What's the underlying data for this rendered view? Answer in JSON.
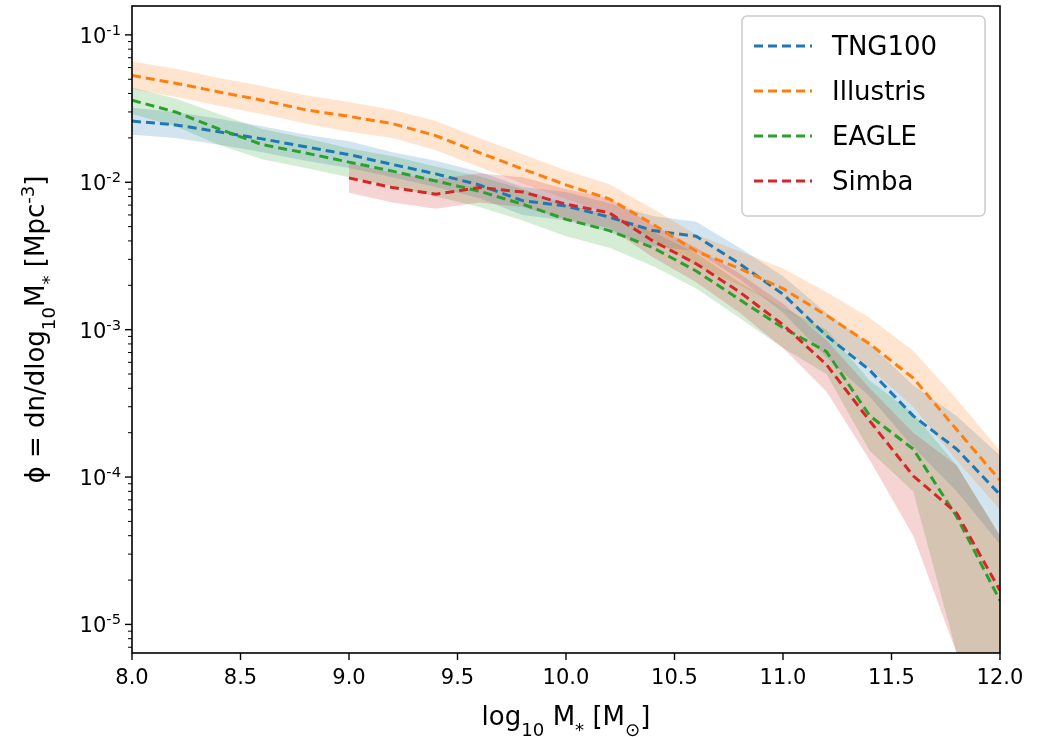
{
  "chart_data": {
    "type": "line",
    "xlabel": "log$_{10}$ M$_{*}$  [M$_{⊙}$]",
    "ylabel": "ϕ = dn/dlog$_{10}$M$_{*}$ [Mpc$^{-3}$]",
    "x": [
      8.0,
      8.2,
      8.4,
      8.6,
      8.8,
      9.0,
      9.2,
      9.4,
      9.6,
      9.8,
      10.0,
      10.2,
      10.4,
      10.6,
      10.8,
      11.0,
      11.2,
      11.4,
      11.6,
      11.8,
      12.0
    ],
    "series": [
      {
        "name": "TNG100",
        "color": "#1f77b4",
        "values": [
          0.026,
          0.0245,
          0.022,
          0.0197,
          0.0174,
          0.0154,
          0.0132,
          0.0114,
          0.0096,
          0.0075,
          0.0069,
          0.0058,
          0.0047,
          0.0043,
          0.0028,
          0.00174,
          0.00091,
          0.00053,
          0.00026,
          0.000155,
          7.6e-05
        ],
        "upper": [
          0.032,
          0.03,
          0.027,
          0.024,
          0.021,
          0.019,
          0.016,
          0.014,
          0.0118,
          0.0093,
          0.0086,
          0.0072,
          0.0059,
          0.0054,
          0.0036,
          0.0023,
          0.0013,
          0.0008,
          0.00042,
          0.00026,
          0.00014
        ],
        "lower": [
          0.021,
          0.02,
          0.018,
          0.016,
          0.014,
          0.0125,
          0.0108,
          0.0093,
          0.0078,
          0.006,
          0.0055,
          0.0046,
          0.0037,
          0.0034,
          0.0022,
          0.0013,
          0.00065,
          0.00035,
          0.00016,
          8e-05,
          3.5e-05
        ]
      },
      {
        "name": "Illustris",
        "color": "#ff7f0e",
        "values": [
          0.053,
          0.047,
          0.041,
          0.036,
          0.031,
          0.028,
          0.025,
          0.0207,
          0.0159,
          0.0123,
          0.0096,
          0.0077,
          0.0052,
          0.0034,
          0.0026,
          0.0019,
          0.00125,
          0.0008,
          0.00047,
          0.00021,
          9.5e-05
        ],
        "upper": [
          0.066,
          0.059,
          0.051,
          0.045,
          0.039,
          0.035,
          0.031,
          0.026,
          0.02,
          0.0155,
          0.012,
          0.0097,
          0.0066,
          0.0044,
          0.0034,
          0.0026,
          0.0018,
          0.0012,
          0.00072,
          0.00034,
          0.00015
        ],
        "lower": [
          0.043,
          0.038,
          0.033,
          0.029,
          0.025,
          0.022,
          0.02,
          0.0165,
          0.0127,
          0.0098,
          0.0077,
          0.0061,
          0.0041,
          0.0027,
          0.002,
          0.0014,
          0.0009,
          0.00055,
          0.0003,
          0.00013,
          6e-05
        ]
      },
      {
        "name": "EAGLE",
        "color": "#2ca02c",
        "values": [
          0.036,
          0.03,
          0.023,
          0.018,
          0.0158,
          0.0137,
          0.0119,
          0.0102,
          0.0087,
          0.0071,
          0.0056,
          0.0047,
          0.0036,
          0.0025,
          0.0016,
          0.00103,
          0.00071,
          0.00026,
          0.000155,
          5.4e-05,
          1.45e-05
        ],
        "upper": [
          0.044,
          0.037,
          0.029,
          0.023,
          0.02,
          0.017,
          0.015,
          0.0128,
          0.011,
          0.009,
          0.0071,
          0.006,
          0.0046,
          0.0033,
          0.0021,
          0.0014,
          0.001,
          0.00045,
          0.00027,
          0.00012,
          4e-05
        ],
        "lower": [
          0.029,
          0.024,
          0.018,
          0.0143,
          0.0125,
          0.0108,
          0.0094,
          0.008,
          0.0068,
          0.0055,
          0.0043,
          0.0036,
          0.0027,
          0.0019,
          0.0012,
          0.00075,
          0.0005,
          0.00015,
          8e-05,
          6.4e-06,
          6.4e-06
        ]
      },
      {
        "name": "Simba",
        "color": "#d62728",
        "x": [
          9.0,
          9.2,
          9.4,
          9.6,
          9.8,
          10.0,
          10.2,
          10.4,
          10.6,
          10.8,
          11.0,
          11.2,
          11.4,
          11.6,
          11.8,
          12.0
        ],
        "values": [
          0.0107,
          0.0092,
          0.0083,
          0.0092,
          0.0086,
          0.0071,
          0.0062,
          0.004,
          0.0028,
          0.0018,
          0.00108,
          0.00058,
          0.00024,
          0.000102,
          5.7e-05,
          1.7e-05
        ],
        "upper": [
          0.0135,
          0.0116,
          0.0105,
          0.0115,
          0.0108,
          0.009,
          0.0078,
          0.0051,
          0.0036,
          0.0024,
          0.0015,
          0.00085,
          0.0004,
          0.0002,
          0.00012,
          4e-05
        ],
        "lower": [
          0.0085,
          0.0073,
          0.0066,
          0.0073,
          0.0068,
          0.0056,
          0.0049,
          0.0031,
          0.0021,
          0.0013,
          0.00075,
          0.00038,
          0.00013,
          4e-05,
          6.4e-06,
          6.4e-06
        ]
      }
    ],
    "xlim": [
      8,
      12
    ],
    "xticks": [
      {
        "value": 8,
        "label": "8.0"
      },
      {
        "value": 8.5,
        "label": "8.5"
      },
      {
        "value": 9,
        "label": "9.0"
      },
      {
        "value": 9.5,
        "label": "9.5"
      },
      {
        "value": 10,
        "label": "10.0"
      },
      {
        "value": 10.5,
        "label": "10.5"
      },
      {
        "value": 11,
        "label": "11.0"
      },
      {
        "value": 11.5,
        "label": "11.5"
      },
      {
        "value": 12,
        "label": "12.0"
      }
    ],
    "ylim": [
      6.4e-06,
      0.157
    ],
    "log": "y",
    "yticks": [
      {
        "value": 1e-05,
        "label": "10$^{-5}$"
      },
      {
        "value": 0.0001,
        "label": "10$^{-4}$"
      },
      {
        "value": 0.001,
        "label": "10$^{-3}$"
      },
      {
        "value": 0.01,
        "label": "10$^{-2}$"
      },
      {
        "value": 0.1,
        "label": "10$^{-1}$"
      },
      {
        "value": 7e-06,
        "label": null
      },
      {
        "value": 8e-06,
        "label": null
      },
      {
        "value": 9e-06,
        "label": null
      },
      {
        "value": 2e-05,
        "label": null
      },
      {
        "value": 3e-05,
        "label": null
      },
      {
        "value": 4e-05,
        "label": null
      },
      {
        "value": 5e-05,
        "label": null
      },
      {
        "value": 6e-05,
        "label": null
      },
      {
        "value": 7e-05,
        "label": null
      },
      {
        "value": 8e-05,
        "label": null
      },
      {
        "value": 9e-05,
        "label": null
      },
      {
        "value": 0.0002,
        "label": null
      },
      {
        "value": 0.0003,
        "label": null
      },
      {
        "value": 0.0004,
        "label": null
      },
      {
        "value": 0.0005,
        "label": null
      },
      {
        "value": 0.0006,
        "label": null
      },
      {
        "value": 0.0007,
        "label": null
      },
      {
        "value": 0.0008,
        "label": null
      },
      {
        "value": 0.0009,
        "label": null
      },
      {
        "value": 0.002,
        "label": null
      },
      {
        "value": 0.003,
        "label": null
      },
      {
        "value": 0.004,
        "label": null
      },
      {
        "value": 0.005,
        "label": null
      },
      {
        "value": 0.006,
        "label": null
      },
      {
        "value": 0.007,
        "label": null
      },
      {
        "value": 0.008,
        "label": null
      },
      {
        "value": 0.009,
        "label": null
      },
      {
        "value": 0.02,
        "label": null
      },
      {
        "value": 0.03,
        "label": null
      },
      {
        "value": 0.04,
        "label": null
      },
      {
        "value": 0.05,
        "label": null
      },
      {
        "value": 0.06,
        "label": null
      },
      {
        "value": 0.07,
        "label": null
      },
      {
        "value": 0.08,
        "label": null
      },
      {
        "value": 0.09,
        "label": null
      }
    ],
    "line_style": "dashed",
    "marker": "none",
    "grid": false,
    "legend": "top right"
  }
}
